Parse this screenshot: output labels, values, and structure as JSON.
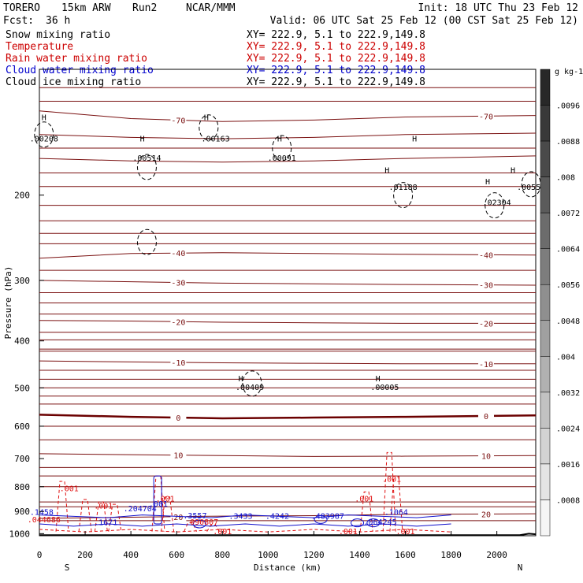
{
  "header": {
    "model": "TORERO",
    "resolution": "15km ARW",
    "run": "Run2",
    "org": "NCAR/MMM",
    "init": "Init: 18 UTC Thu 23 Feb 12",
    "fcst_label": "Fcst:",
    "fcst_value": "36 h",
    "valid": "Valid: 06 UTC Sat 25 Feb 12 (00 CST Sat 25 Feb 12)",
    "xy_text": "XY= 222.9,  5.1 to 222.9,149.8"
  },
  "legend": [
    {
      "name": "Snow mixing ratio",
      "color": "#000000",
      "style": "solid"
    },
    {
      "name": "Temperature",
      "color": "#cc0000",
      "style": "solid"
    },
    {
      "name": "Rain water mixing ratio",
      "color": "#cc0000",
      "style": "solid"
    },
    {
      "name": "Cloud water mixing ratio",
      "color": "#0000cc",
      "style": "solid"
    },
    {
      "name": "Cloud ice mixing ratio",
      "color": "#000000",
      "style": "solid"
    }
  ],
  "colors": {
    "temperature": "#7a1010",
    "temperature_zero": "#6b0000",
    "rain": "#e01010",
    "cloud_water": "#1010cc",
    "cloud_ice": "#000000",
    "terrain": "#000000"
  },
  "chart_data": {
    "type": "line",
    "xlabel": "Distance (km)",
    "ylabel": "Pressure (hPa)",
    "x_ticks": [
      "0",
      "200",
      "400",
      "600",
      "800",
      "1000",
      "1200",
      "1400",
      "1600",
      "1800",
      "2000"
    ],
    "y_ticks": [
      "200",
      "300",
      "400",
      "500",
      "600",
      "700",
      "800",
      "900",
      "1000"
    ],
    "xlim": [
      0,
      2170
    ],
    "ylim": [
      1010,
      110
    ],
    "y_scale": "log",
    "end_labels": {
      "left": "S",
      "right": "N"
    },
    "colorbar": {
      "unit": "g kg-1",
      "ticks": [
        ".0096",
        ".0088",
        ".008",
        ".0072",
        ".0064",
        ".0056",
        ".0048",
        ".004",
        ".0032",
        ".0024",
        ".0016",
        ".0008"
      ],
      "min": 0.0004,
      "max": 0.0104
    },
    "temperature_isotherms": [
      {
        "temp": -70,
        "label": "-70",
        "pressures": [
          134,
          139,
          141,
          140,
          138,
          137
        ]
      },
      {
        "temp": -60,
        "label": "",
        "pressures": [
          150,
          152,
          153,
          152,
          150,
          149
        ]
      },
      {
        "temp": -50,
        "label": "",
        "pressures": [
          168,
          170,
          171,
          170,
          168,
          166
        ]
      },
      {
        "temp": -40,
        "label": "-40",
        "pressures": [
          270,
          264,
          263,
          264,
          265,
          266
        ]
      },
      {
        "temp": -30,
        "label": "-30",
        "pressures": [
          300,
          302,
          304,
          305,
          306,
          307
        ]
      },
      {
        "temp": -20,
        "label": "-20",
        "pressures": [
          363,
          364,
          366,
          367,
          368,
          368
        ]
      },
      {
        "temp": -10,
        "label": "-10",
        "pressures": [
          440,
          442,
          444,
          445,
          446,
          446
        ]
      },
      {
        "temp": 0,
        "label": "0",
        "pressures": [
          568,
          574,
          578,
          576,
          574,
          570
        ]
      },
      {
        "temp": 10,
        "label": "10",
        "pressures": [
          684,
          687,
          690,
          693,
          692,
          690
        ]
      },
      {
        "temp": 20,
        "label": "20",
        "pressures": [
          930,
          925,
          920,
          918,
          912,
          910
        ]
      }
    ],
    "isotherm_x": [
      0,
      400,
      800,
      1200,
      1600,
      2170
    ],
    "extra_levels_hPa": [
      120,
      128,
      160,
      180,
      192,
      210,
      226,
      240,
      252,
      286,
      318,
      334,
      352,
      384,
      398,
      416,
      420,
      460,
      480,
      500,
      520,
      540,
      600,
      640,
      730,
      760,
      800,
      860,
      880,
      940
    ],
    "snow_labels": [
      {
        "x": 20,
        "p": 155,
        "text": ".00208"
      },
      {
        "x": 470,
        "p": 170,
        "text": ".00514"
      },
      {
        "x": 770,
        "p": 155,
        "text": ".00163"
      },
      {
        "x": 1060,
        "p": 170,
        "text": ".00091"
      },
      {
        "x": 1590,
        "p": 195,
        "text": ".01188"
      },
      {
        "x": 2000,
        "p": 210,
        "text": ".02304"
      },
      {
        "x": 2150,
        "p": 195,
        "text": ".00550"
      },
      {
        "x": 1510,
        "p": 505,
        "text": ".00005"
      },
      {
        "x": 920,
        "p": 505,
        "text": ".00409"
      }
    ],
    "h_markers": [
      {
        "x": 20,
        "p": 140
      },
      {
        "x": 450,
        "p": 155
      },
      {
        "x": 730,
        "p": 140
      },
      {
        "x": 1050,
        "p": 155
      },
      {
        "x": 1520,
        "p": 180
      },
      {
        "x": 1640,
        "p": 155
      },
      {
        "x": 1960,
        "p": 190
      },
      {
        "x": 2070,
        "p": 180
      },
      {
        "x": 880,
        "p": 485
      },
      {
        "x": 1480,
        "p": 485
      }
    ],
    "cloud_water_labels": [
      {
        "x": 10,
        "p": 915,
        "text": ".1458"
      },
      {
        "x": 290,
        "p": 960,
        "text": ".1671"
      },
      {
        "x": 440,
        "p": 900,
        "text": ".204704"
      },
      {
        "x": 520,
        "p": 880,
        "text": ".001"
      },
      {
        "x": 680,
        "p": 930,
        "text": ".3557"
      },
      {
        "x": 880,
        "p": 932,
        "text": ".3433"
      },
      {
        "x": 1040,
        "p": 932,
        "text": ".4242"
      },
      {
        "x": 1260,
        "p": 932,
        "text": ".483987"
      },
      {
        "x": 1560,
        "p": 915,
        "text": ".1064"
      },
      {
        "x": 1490,
        "p": 958,
        "text": ".064245"
      }
    ],
    "rain_labels": [
      {
        "x": 20,
        "p": 948,
        "text": ".044686"
      },
      {
        "x": 130,
        "p": 818,
        "text": ".001"
      },
      {
        "x": 280,
        "p": 888,
        "text": ".001"
      },
      {
        "x": 550,
        "p": 858,
        "text": ".001"
      },
      {
        "x": 710,
        "p": 958,
        "text": ".090807"
      },
      {
        "x": 1420,
        "p": 858,
        "text": ".001"
      },
      {
        "x": 1540,
        "p": 782,
        "text": ".001"
      },
      {
        "x": 800,
        "p": 1002,
        "text": ".001"
      },
      {
        "x": 1350,
        "p": 1002,
        "text": ".001"
      },
      {
        "x": 1600,
        "p": 1002,
        "text": ".001"
      }
    ]
  }
}
